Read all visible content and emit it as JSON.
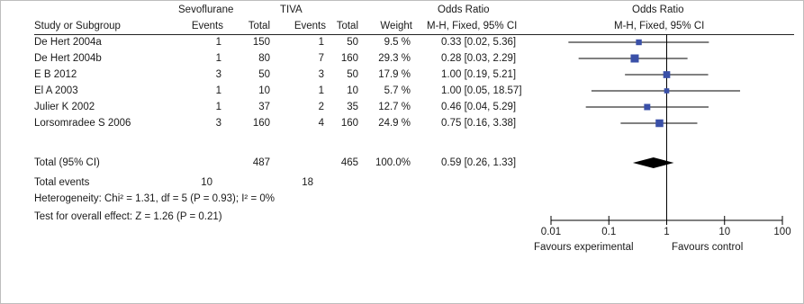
{
  "header": {
    "group1": "Sevoflurane",
    "group2": "TIVA",
    "or_title_left": "Odds Ratio",
    "or_title_right": "Odds Ratio",
    "study_col": "Study or Subgroup",
    "events1": "Events",
    "total1": "Total",
    "events2": "Events",
    "total2": "Total",
    "weight": "Weight",
    "method_left": "M-H, Fixed, 95% CI",
    "method_right": "M-H, Fixed, 95% CI"
  },
  "rows": [
    {
      "study": "De Hert 2004a",
      "e1": "1",
      "t1": "150",
      "e2": "1",
      "t2": "50",
      "weight": "9.5 %",
      "ci": "0.33 [0.02, 5.36]"
    },
    {
      "study": "De Hert 2004b",
      "e1": "1",
      "t1": "80",
      "e2": "7",
      "t2": "160",
      "weight": "29.3 %",
      "ci": "0.28 [0.03, 2.29]"
    },
    {
      "study": "E B 2012",
      "e1": "3",
      "t1": "50",
      "e2": "3",
      "t2": "50",
      "weight": "17.9 %",
      "ci": "1.00 [0.19, 5.21]"
    },
    {
      "study": "El A 2003",
      "e1": "1",
      "t1": "10",
      "e2": "1",
      "t2": "10",
      "weight": "5.7 %",
      "ci": "1.00 [0.05, 18.57]"
    },
    {
      "study": "Julier K 2002",
      "e1": "1",
      "t1": "37",
      "e2": "2",
      "t2": "35",
      "weight": "12.7 %",
      "ci": "0.46 [0.04, 5.29]"
    },
    {
      "study": "Lorsomradee S 2006",
      "e1": "3",
      "t1": "160",
      "e2": "4",
      "t2": "160",
      "weight": "24.9 %",
      "ci": "0.75 [0.16, 3.38]"
    }
  ],
  "total": {
    "label": "Total (95% CI)",
    "t1": "487",
    "t2": "465",
    "weight": "100.0%",
    "ci": "0.59 [0.26, 1.33]"
  },
  "total_events": {
    "label": "Total events",
    "e1": "10",
    "e2": "18"
  },
  "heterogeneity": "Heterogeneity: Chi² = 1.31, df = 5 (P = 0.93); I² = 0%",
  "overall_effect": "Test for overall effect: Z = 1.26 (P = 0.21)",
  "axis": {
    "ticks": [
      "0.01",
      "0.1",
      "1",
      "10",
      "100"
    ],
    "favours_left": "Favours experimental",
    "favours_right": "Favours control"
  },
  "colors": {
    "square": "#3a50a8",
    "diamond": "#000000",
    "line": "#000000"
  },
  "chart_data": {
    "type": "scatter",
    "scale": "log",
    "xlim": [
      0.01,
      100
    ],
    "null_line": 1,
    "studies": [
      {
        "name": "De Hert 2004a",
        "or": 0.33,
        "lo": 0.02,
        "hi": 5.36,
        "weight": 9.5
      },
      {
        "name": "De Hert 2004b",
        "or": 0.28,
        "lo": 0.03,
        "hi": 2.29,
        "weight": 29.3
      },
      {
        "name": "E B 2012",
        "or": 1.0,
        "lo": 0.19,
        "hi": 5.21,
        "weight": 17.9
      },
      {
        "name": "El A 2003",
        "or": 1.0,
        "lo": 0.05,
        "hi": 18.57,
        "weight": 5.7
      },
      {
        "name": "Julier K 2002",
        "or": 0.46,
        "lo": 0.04,
        "hi": 5.29,
        "weight": 12.7
      },
      {
        "name": "Lorsomradee S 2006",
        "or": 0.75,
        "lo": 0.16,
        "hi": 3.38,
        "weight": 24.9
      }
    ],
    "pooled": {
      "or": 0.59,
      "lo": 0.26,
      "hi": 1.33
    }
  }
}
